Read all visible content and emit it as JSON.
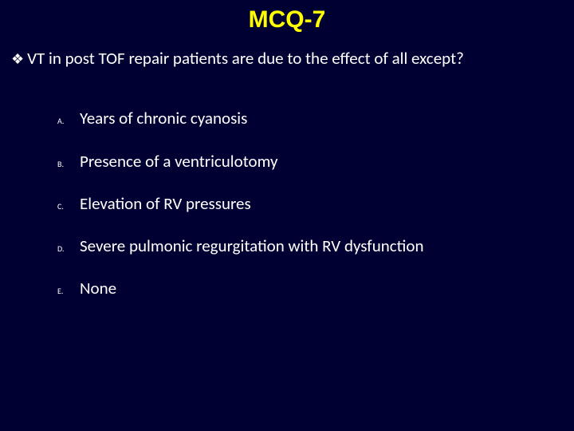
{
  "colors": {
    "background": "#000033",
    "title": "#ffff00",
    "text": "#ffffff"
  },
  "typography": {
    "title_fontsize": 30,
    "title_weight": "bold",
    "question_fontsize": 21,
    "option_fontsize": 21,
    "option_label_fontsize": 10
  },
  "title": "MCQ-7",
  "bullet_glyph": "❖",
  "question": "VT in post TOF repair patients are due to the effect of all except?",
  "options": [
    {
      "label": "A.",
      "text": "Years of chronic cyanosis"
    },
    {
      "label": "B.",
      "text": "Presence of a ventriculotomy"
    },
    {
      "label": "C.",
      "text": " Elevation of RV pressures"
    },
    {
      "label": "D.",
      "text": "Severe pulmonic regurgitation with RV dysfunction"
    },
    {
      "label": "E.",
      "text": "None"
    }
  ]
}
